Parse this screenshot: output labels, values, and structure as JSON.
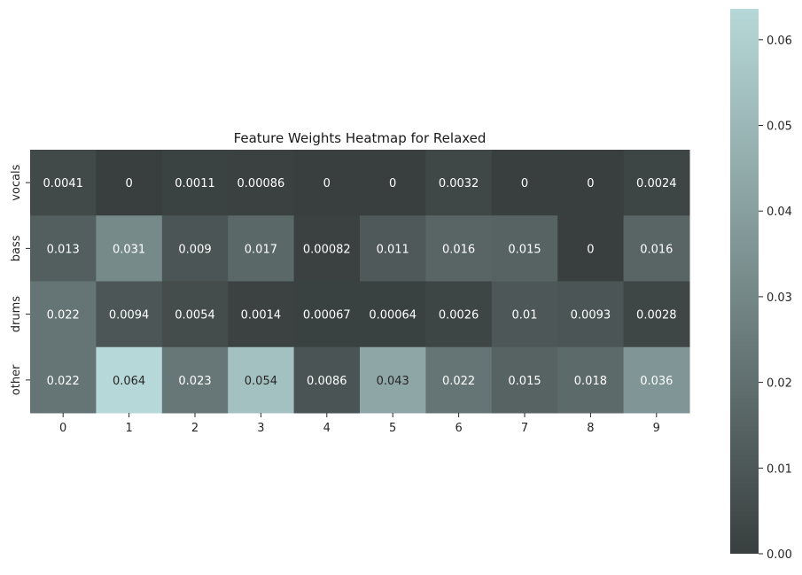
{
  "chart_data": {
    "type": "heatmap",
    "title": "Feature Weights Heatmap for Relaxed",
    "x_categories": [
      "0",
      "1",
      "2",
      "3",
      "4",
      "5",
      "6",
      "7",
      "8",
      "9"
    ],
    "y_categories": [
      "vocals",
      "bass",
      "drums",
      "other"
    ],
    "values": [
      [
        0.0041,
        0,
        0.0011,
        0.00086,
        0,
        0,
        0.0032,
        0,
        0,
        0.0024
      ],
      [
        0.013,
        0.031,
        0.009,
        0.017,
        0.00082,
        0.011,
        0.016,
        0.015,
        0,
        0.016
      ],
      [
        0.022,
        0.0094,
        0.0054,
        0.0014,
        0.00067,
        0.00064,
        0.0026,
        0.01,
        0.0093,
        0.0028
      ],
      [
        0.022,
        0.064,
        0.023,
        0.054,
        0.0086,
        0.043,
        0.022,
        0.015,
        0.018,
        0.036
      ]
    ],
    "annotations": [
      [
        "0.0041",
        "0",
        "0.0011",
        "0.00086",
        "0",
        "0",
        "0.0032",
        "0",
        "0",
        "0.0024"
      ],
      [
        "0.013",
        "0.031",
        "0.009",
        "0.017",
        "0.00082",
        "0.011",
        "0.016",
        "0.015",
        "0",
        "0.016"
      ],
      [
        "0.022",
        "0.0094",
        "0.0054",
        "0.0014",
        "0.00067",
        "0.00064",
        "0.0026",
        "0.01",
        "0.0093",
        "0.0028"
      ],
      [
        "0.022",
        "0.064",
        "0.023",
        "0.054",
        "0.0086",
        "0.043",
        "0.022",
        "0.015",
        "0.018",
        "0.036"
      ]
    ],
    "colorbar": {
      "range": [
        0,
        0.0636
      ],
      "ticks": [
        0.0,
        0.01,
        0.02,
        0.03,
        0.04,
        0.05,
        0.06
      ],
      "tick_labels": [
        "0.00",
        "0.01",
        "0.02",
        "0.03",
        "0.04",
        "0.05",
        "0.06"
      ]
    },
    "colors": {
      "low": "#393f3f",
      "high": "#b7d8d8"
    }
  }
}
